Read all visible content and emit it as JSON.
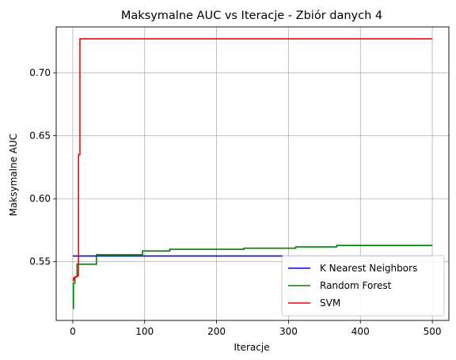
{
  "chart_data": {
    "type": "line",
    "title": "Maksymalne AUC vs Iteracje - Zbiór danych 4",
    "xlabel": "Iteracje",
    "ylabel": "Maksymalne AUC",
    "xlim": [
      -23,
      523
    ],
    "ylim": [
      0.5033,
      0.7365
    ],
    "xticks": [
      0,
      100,
      200,
      300,
      400,
      500
    ],
    "yticks": [
      0.55,
      0.6,
      0.65,
      0.7
    ],
    "grid": true,
    "legend_position": "lower-right",
    "series": [
      {
        "name": "K Nearest Neighbors",
        "color": "#0000ff",
        "step": true,
        "x": [
          0,
          500
        ],
        "y": [
          0.5545,
          0.5545
        ]
      },
      {
        "name": "Random Forest",
        "color": "#008000",
        "step": true,
        "x": [
          0,
          1,
          3,
          6,
          33,
          97,
          135,
          238,
          310,
          367,
          500
        ],
        "y": [
          0.513,
          0.533,
          0.538,
          0.548,
          0.5555,
          0.5585,
          0.5598,
          0.5607,
          0.5617,
          0.5629,
          0.5629
        ]
      },
      {
        "name": "SVM",
        "color": "#ff0000",
        "step": true,
        "x": [
          0,
          1,
          3,
          6,
          8,
          10,
          500
        ],
        "y": [
          0.535,
          0.537,
          0.538,
          0.539,
          0.635,
          0.727,
          0.727
        ]
      }
    ]
  }
}
